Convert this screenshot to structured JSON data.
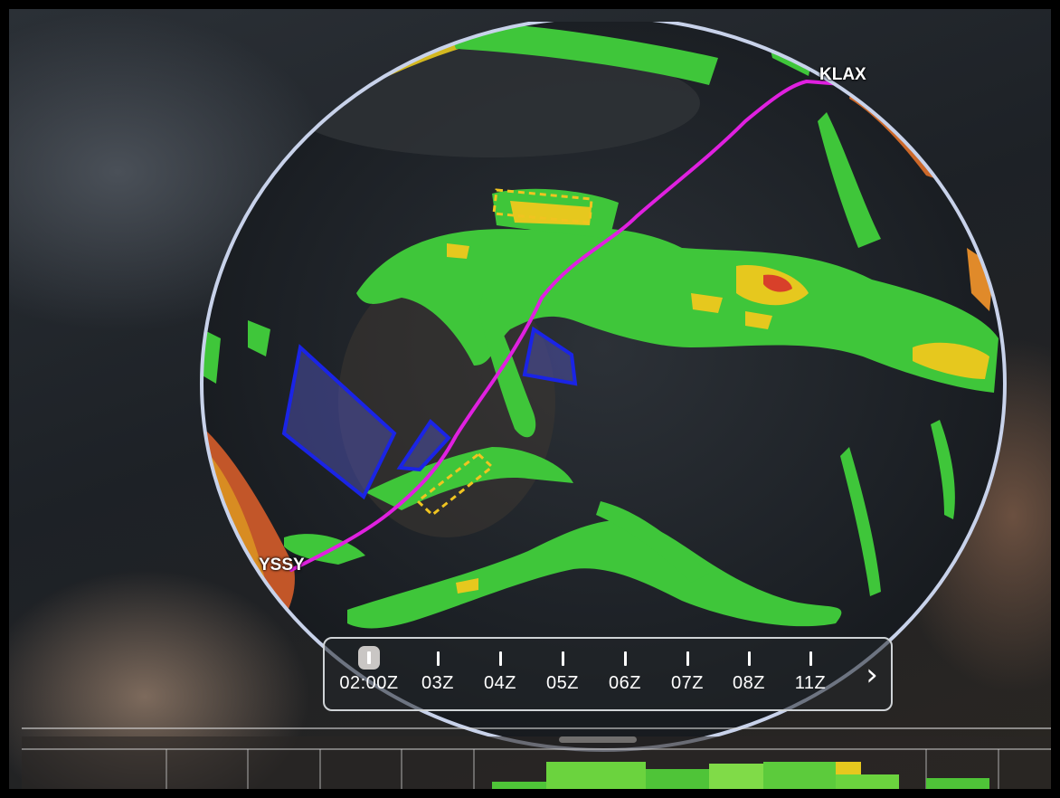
{
  "map": {
    "route": {
      "origin": "YSSY",
      "destination": "KLAX",
      "line_color": "#e020e0"
    },
    "colors": {
      "precip_light": "#3fc63a",
      "precip_moderate": "#e6c81e",
      "precip_heavy": "#e0502a",
      "sigmet_outline": "#1a24e6",
      "sigmet_fill": "#4a4fa8",
      "airmet_dashed": "#f0c420",
      "globe_edge": "#c8d2ea"
    },
    "icons": {
      "sigmet": "sigmet-polygon-icon",
      "airmet": "airmet-dashed-box-icon"
    }
  },
  "timeline": {
    "ticks": [
      {
        "label": "02:00Z",
        "selected": true
      },
      {
        "label": "03Z",
        "selected": false
      },
      {
        "label": "04Z",
        "selected": false
      },
      {
        "label": "05Z",
        "selected": false
      },
      {
        "label": "06Z",
        "selected": false
      },
      {
        "label": "07Z",
        "selected": false
      },
      {
        "label": "08Z",
        "selected": false
      },
      {
        "label": "11Z",
        "selected": false
      }
    ],
    "next_icon": "chevron-right-icon",
    "next_symbol": "›"
  },
  "bottom_panel": {
    "handle_icon": "drag-handle-icon"
  }
}
